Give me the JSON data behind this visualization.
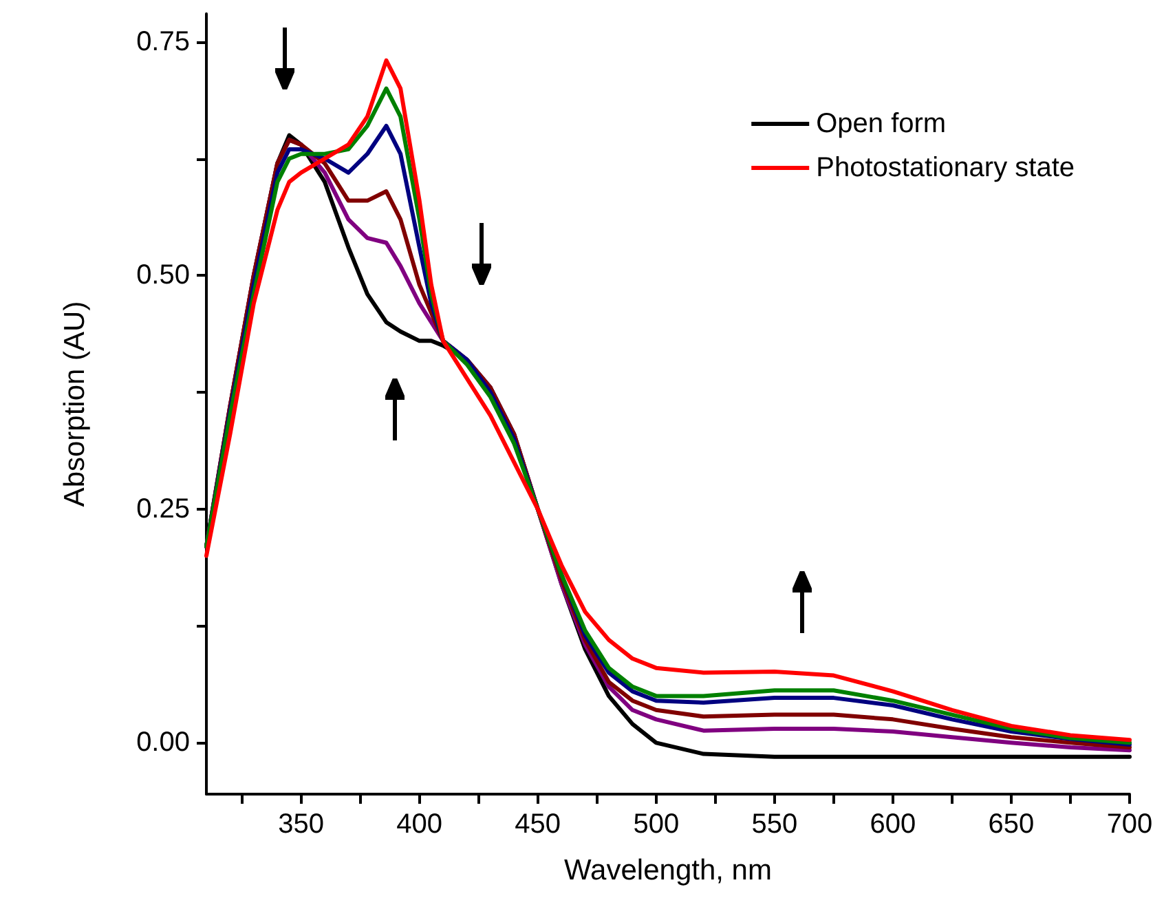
{
  "chart_data": {
    "type": "line",
    "xlabel": "Wavelength, nm",
    "ylabel": "Absorption (AU)",
    "x": [
      310,
      320,
      330,
      340,
      345,
      350,
      360,
      370,
      378,
      386,
      392,
      400,
      405,
      410,
      420,
      430,
      440,
      450,
      460,
      470,
      480,
      490,
      500,
      520,
      550,
      575,
      600,
      625,
      650,
      675,
      700
    ],
    "series": [
      {
        "name": "Open form",
        "color": "#000000",
        "values": [
          0.21,
          0.36,
          0.5,
          0.62,
          0.65,
          0.64,
          0.6,
          0.53,
          0.48,
          0.45,
          0.44,
          0.43,
          0.43,
          0.425,
          0.41,
          0.38,
          0.33,
          0.25,
          0.17,
          0.1,
          0.05,
          0.02,
          0.0,
          -0.012,
          -0.015,
          -0.015,
          -0.015,
          -0.015,
          -0.015,
          -0.015,
          -0.015
        ]
      },
      {
        "color": "#800080",
        "values": [
          0.21,
          0.36,
          0.5,
          0.62,
          0.645,
          0.64,
          0.61,
          0.56,
          0.54,
          0.535,
          0.51,
          0.47,
          0.45,
          0.43,
          0.41,
          0.38,
          0.33,
          0.25,
          0.17,
          0.105,
          0.06,
          0.035,
          0.025,
          0.013,
          0.015,
          0.015,
          0.012,
          0.006,
          0.0,
          -0.005,
          -0.008
        ]
      },
      {
        "color": "#800000",
        "values": [
          0.21,
          0.36,
          0.5,
          0.62,
          0.645,
          0.64,
          0.62,
          0.58,
          0.58,
          0.59,
          0.56,
          0.49,
          0.46,
          0.43,
          0.41,
          0.38,
          0.33,
          0.25,
          0.175,
          0.11,
          0.065,
          0.045,
          0.035,
          0.028,
          0.03,
          0.03,
          0.025,
          0.015,
          0.006,
          0.0,
          -0.005
        ]
      },
      {
        "color": "#000080",
        "values": [
          0.21,
          0.355,
          0.49,
          0.61,
          0.635,
          0.635,
          0.625,
          0.61,
          0.63,
          0.66,
          0.63,
          0.53,
          0.47,
          0.43,
          0.41,
          0.375,
          0.325,
          0.25,
          0.18,
          0.115,
          0.075,
          0.055,
          0.045,
          0.043,
          0.048,
          0.048,
          0.04,
          0.025,
          0.012,
          0.004,
          -0.002
        ]
      },
      {
        "color": "#008000",
        "values": [
          0.21,
          0.35,
          0.48,
          0.6,
          0.625,
          0.63,
          0.63,
          0.635,
          0.66,
          0.7,
          0.67,
          0.56,
          0.48,
          0.43,
          0.405,
          0.37,
          0.32,
          0.25,
          0.18,
          0.12,
          0.08,
          0.06,
          0.05,
          0.05,
          0.056,
          0.056,
          0.045,
          0.03,
          0.015,
          0.005,
          0.0
        ]
      },
      {
        "name": "Photostationary state",
        "color": "#ff0000",
        "values": [
          0.2,
          0.33,
          0.47,
          0.57,
          0.6,
          0.61,
          0.625,
          0.64,
          0.67,
          0.73,
          0.7,
          0.58,
          0.49,
          0.43,
          0.39,
          0.35,
          0.3,
          0.25,
          0.19,
          0.14,
          0.11,
          0.09,
          0.08,
          0.075,
          0.076,
          0.072,
          0.055,
          0.035,
          0.018,
          0.008,
          0.003
        ]
      }
    ],
    "xlim": [
      310,
      700
    ],
    "xticks": [
      {
        "value": 325,
        "label": null
      },
      350,
      {
        "value": 375,
        "label": null
      },
      400,
      {
        "value": 425,
        "label": null
      },
      450,
      {
        "value": 475,
        "label": null
      },
      500,
      {
        "value": 525,
        "label": null
      },
      550,
      {
        "value": 575,
        "label": null
      },
      600,
      {
        "value": 625,
        "label": null
      },
      650,
      {
        "value": 675,
        "label": null
      },
      700
    ],
    "ylim": [
      -0.055,
      0.78
    ],
    "yticks": [
      {
        "value": 0,
        "label": "0.00"
      },
      {
        "value": 0.125,
        "label": null
      },
      {
        "value": 0.25,
        "label": "0.25"
      },
      {
        "value": 0.375,
        "label": null
      },
      {
        "value": 0.5,
        "label": "0.50"
      },
      {
        "value": 0.625,
        "label": null
      },
      {
        "value": 0.75,
        "label": "0.75"
      }
    ],
    "legend": "top right",
    "grid": false,
    "marker": "none",
    "line_style": "solid"
  }
}
